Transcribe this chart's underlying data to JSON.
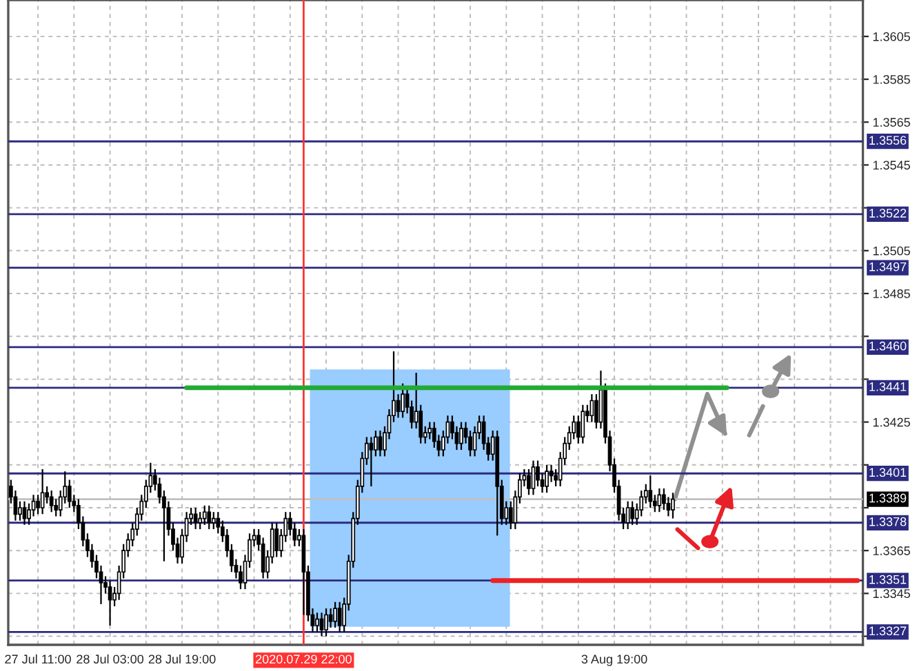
{
  "chart_data": {
    "type": "candlestick",
    "categories": [
      null,
      null,
      null,
      null,
      null,
      null,
      "27 Jul 11:00",
      null,
      null,
      null,
      null,
      null,
      null,
      null,
      null,
      null,
      null,
      null,
      null,
      null,
      null,
      null,
      "28 Jul 03:00",
      null,
      null,
      null,
      null,
      null,
      null,
      null,
      null,
      null,
      null,
      null,
      null,
      null,
      null,
      null,
      "28 Jul 19:00",
      null,
      null,
      null,
      null,
      null,
      null,
      null,
      null,
      null,
      null,
      null,
      null,
      null,
      null,
      null,
      null,
      null,
      null,
      null,
      null,
      null,
      null,
      null,
      null,
      null,
      null,
      "2020.07.29 22:00",
      null,
      null,
      null,
      null,
      null,
      null,
      null,
      null,
      null,
      null,
      null,
      null,
      null,
      null,
      null,
      null,
      null,
      null,
      null,
      null,
      null,
      null,
      null,
      null,
      null,
      null,
      null,
      null,
      null,
      null,
      null,
      null,
      null,
      null,
      null,
      null,
      null,
      null,
      null,
      null,
      null,
      null,
      null,
      null,
      null,
      null,
      null,
      null,
      null,
      null,
      null,
      null,
      null,
      null,
      null,
      null,
      null,
      null,
      null,
      null,
      null,
      null,
      null,
      null,
      null,
      null,
      null,
      null,
      "3 Aug 19:00",
      null,
      null,
      null,
      null,
      null,
      null,
      null,
      null,
      null,
      null,
      null,
      null,
      null,
      null,
      null,
      null,
      null,
      null,
      null,
      null,
      null,
      null,
      null,
      null,
      null,
      null,
      null,
      null,
      null,
      null,
      null,
      null,
      null,
      null,
      null,
      null,
      null,
      null,
      null,
      null,
      null,
      null,
      null,
      null,
      null,
      null,
      null,
      null,
      null,
      null,
      null,
      null,
      null,
      null,
      null
    ],
    "ohlc": [
      [
        1.3395,
        1.3398,
        1.3387,
        1.339
      ],
      [
        1.339,
        1.3393,
        1.3379,
        1.3382
      ],
      [
        1.3382,
        1.3388,
        1.3379,
        1.3385
      ],
      [
        1.3385,
        1.3388,
        1.3377,
        1.338
      ],
      [
        1.338,
        1.3387,
        1.3377,
        1.3384
      ],
      [
        1.3384,
        1.3391,
        1.3381,
        1.3388
      ],
      [
        1.3388,
        1.3391,
        1.3382,
        1.3385
      ],
      [
        1.3385,
        1.3403,
        1.3382,
        1.3392
      ],
      [
        1.3392,
        1.3395,
        1.3387,
        1.339
      ],
      [
        1.339,
        1.3393,
        1.3383,
        1.3386
      ],
      [
        1.3386,
        1.3389,
        1.3381,
        1.3384
      ],
      [
        1.3384,
        1.3393,
        1.3381,
        1.339
      ],
      [
        1.339,
        1.3402,
        1.3387,
        1.3395
      ],
      [
        1.3395,
        1.3398,
        1.3385,
        1.3388
      ],
      [
        1.3388,
        1.3391,
        1.3383,
        1.3386
      ],
      [
        1.3386,
        1.3389,
        1.3375,
        1.3378
      ],
      [
        1.3378,
        1.3381,
        1.3367,
        1.337
      ],
      [
        1.337,
        1.3373,
        1.3362,
        1.3365
      ],
      [
        1.3365,
        1.3368,
        1.3357,
        1.336
      ],
      [
        1.336,
        1.3363,
        1.3352,
        1.3355
      ],
      [
        1.3355,
        1.3358,
        1.334,
        1.335
      ],
      [
        1.335,
        1.3353,
        1.3345,
        1.3348
      ],
      [
        1.3348,
        1.3351,
        1.333,
        1.3342
      ],
      [
        1.3342,
        1.3348,
        1.3339,
        1.3345
      ],
      [
        1.3345,
        1.3358,
        1.3342,
        1.3355
      ],
      [
        1.3355,
        1.3368,
        1.3352,
        1.3365
      ],
      [
        1.3365,
        1.3373,
        1.3362,
        1.337
      ],
      [
        1.337,
        1.3378,
        1.3367,
        1.3375
      ],
      [
        1.3375,
        1.3385,
        1.3372,
        1.3382
      ],
      [
        1.3382,
        1.3391,
        1.3379,
        1.3388
      ],
      [
        1.3388,
        1.3398,
        1.3385,
        1.3395
      ],
      [
        1.3395,
        1.3406,
        1.3392,
        1.34
      ],
      [
        1.34,
        1.3403,
        1.3393,
        1.3396
      ],
      [
        1.3396,
        1.3399,
        1.3387,
        1.339
      ],
      [
        1.339,
        1.3393,
        1.336,
        1.3385
      ],
      [
        1.3385,
        1.3388,
        1.3372,
        1.3375
      ],
      [
        1.3375,
        1.3378,
        1.3365,
        1.3368
      ],
      [
        1.3368,
        1.3371,
        1.3359,
        1.3362
      ],
      [
        1.3362,
        1.3375,
        1.3359,
        1.3372
      ],
      [
        1.3372,
        1.3383,
        1.3369,
        1.338
      ],
      [
        1.338,
        1.3385,
        1.3377,
        1.3382
      ],
      [
        1.3382,
        1.3385,
        1.3375,
        1.3378
      ],
      [
        1.3378,
        1.3383,
        1.3375,
        1.338
      ],
      [
        1.338,
        1.3386,
        1.3377,
        1.3383
      ],
      [
        1.3383,
        1.3386,
        1.3375,
        1.3378
      ],
      [
        1.3378,
        1.3383,
        1.3375,
        1.338
      ],
      [
        1.338,
        1.3383,
        1.3373,
        1.3376
      ],
      [
        1.3376,
        1.3379,
        1.3369,
        1.3372
      ],
      [
        1.3372,
        1.3375,
        1.3362,
        1.3365
      ],
      [
        1.3365,
        1.3368,
        1.3355,
        1.3358
      ],
      [
        1.3358,
        1.3361,
        1.3352,
        1.3355
      ],
      [
        1.3355,
        1.3358,
        1.3347,
        1.335
      ],
      [
        1.335,
        1.3363,
        1.3347,
        1.336
      ],
      [
        1.336,
        1.3373,
        1.3357,
        1.337
      ],
      [
        1.337,
        1.3375,
        1.3367,
        1.3372
      ],
      [
        1.3372,
        1.3375,
        1.3365,
        1.3368
      ],
      [
        1.3368,
        1.3371,
        1.3352,
        1.3355
      ],
      [
        1.3355,
        1.3365,
        1.3352,
        1.3362
      ],
      [
        1.3362,
        1.3378,
        1.3359,
        1.3375
      ],
      [
        1.3375,
        1.3378,
        1.3362,
        1.3365
      ],
      [
        1.3365,
        1.3375,
        1.3362,
        1.3372
      ],
      [
        1.3372,
        1.3383,
        1.3369,
        1.338
      ],
      [
        1.338,
        1.3383,
        1.3372,
        1.3375
      ],
      [
        1.3375,
        1.3378,
        1.3367,
        1.337
      ],
      [
        1.337,
        1.3375,
        1.3367,
        1.3372
      ],
      [
        1.3372,
        1.3375,
        1.3335,
        1.3355
      ],
      [
        1.3355,
        1.3358,
        1.3332,
        1.3335
      ],
      [
        1.3335,
        1.3338,
        1.3327,
        1.333
      ],
      [
        1.333,
        1.3336,
        1.3327,
        1.3333
      ],
      [
        1.3333,
        1.3336,
        1.3325,
        1.3328
      ],
      [
        1.3328,
        1.3338,
        1.3325,
        1.3335
      ],
      [
        1.3335,
        1.3338,
        1.3329,
        1.3332
      ],
      [
        1.3332,
        1.3341,
        1.3329,
        1.3338
      ],
      [
        1.3338,
        1.3341,
        1.3327,
        1.333
      ],
      [
        1.333,
        1.3343,
        1.3327,
        1.334
      ],
      [
        1.334,
        1.3363,
        1.3337,
        1.336
      ],
      [
        1.336,
        1.3383,
        1.3357,
        1.338
      ],
      [
        1.338,
        1.3398,
        1.3377,
        1.3395
      ],
      [
        1.3395,
        1.3411,
        1.3392,
        1.3408
      ],
      [
        1.3408,
        1.3418,
        1.3405,
        1.3415
      ],
      [
        1.3415,
        1.3418,
        1.3395,
        1.3412
      ],
      [
        1.3412,
        1.3421,
        1.3409,
        1.3418
      ],
      [
        1.3418,
        1.3421,
        1.3409,
        1.3412
      ],
      [
        1.3412,
        1.3423,
        1.3409,
        1.342
      ],
      [
        1.342,
        1.3431,
        1.3417,
        1.3428
      ],
      [
        1.3428,
        1.3458,
        1.3425,
        1.3435
      ],
      [
        1.3435,
        1.3438,
        1.3427,
        1.343
      ],
      [
        1.343,
        1.3443,
        1.3427,
        1.3438
      ],
      [
        1.3438,
        1.3441,
        1.3429,
        1.3432
      ],
      [
        1.3432,
        1.3435,
        1.3422,
        1.3425
      ],
      [
        1.3425,
        1.3448,
        1.3422,
        1.343
      ],
      [
        1.343,
        1.3433,
        1.3415,
        1.3418
      ],
      [
        1.3418,
        1.3423,
        1.3415,
        1.342
      ],
      [
        1.342,
        1.3425,
        1.3417,
        1.3422
      ],
      [
        1.3422,
        1.3425,
        1.3413,
        1.3416
      ],
      [
        1.3416,
        1.3419,
        1.3409,
        1.3412
      ],
      [
        1.3412,
        1.3421,
        1.3409,
        1.3418
      ],
      [
        1.3418,
        1.3428,
        1.3415,
        1.3425
      ],
      [
        1.3425,
        1.3428,
        1.3417,
        1.342
      ],
      [
        1.342,
        1.3423,
        1.3412,
        1.3415
      ],
      [
        1.3415,
        1.3425,
        1.3412,
        1.3422
      ],
      [
        1.3422,
        1.3425,
        1.3415,
        1.3418
      ],
      [
        1.3418,
        1.3421,
        1.3409,
        1.3412
      ],
      [
        1.3412,
        1.3423,
        1.3409,
        1.342
      ],
      [
        1.342,
        1.3428,
        1.3417,
        1.3425
      ],
      [
        1.3425,
        1.3428,
        1.3412,
        1.3415
      ],
      [
        1.3415,
        1.3418,
        1.3407,
        1.341
      ],
      [
        1.341,
        1.3421,
        1.3407,
        1.3418
      ],
      [
        1.3418,
        1.3421,
        1.3372,
        1.3395
      ],
      [
        1.3395,
        1.3398,
        1.3377,
        1.338
      ],
      [
        1.338,
        1.3388,
        1.3377,
        1.3385
      ],
      [
        1.3385,
        1.3388,
        1.3375,
        1.3378
      ],
      [
        1.3378,
        1.3393,
        1.3375,
        1.339
      ],
      [
        1.339,
        1.3401,
        1.3387,
        1.3398
      ],
      [
        1.3398,
        1.3403,
        1.3395,
        1.34
      ],
      [
        1.34,
        1.3403,
        1.3391,
        1.3394
      ],
      [
        1.3394,
        1.3407,
        1.3391,
        1.3404
      ],
      [
        1.3404,
        1.3407,
        1.3395,
        1.3398
      ],
      [
        1.3398,
        1.3401,
        1.3392,
        1.3395
      ],
      [
        1.3395,
        1.3405,
        1.3392,
        1.3402
      ],
      [
        1.3402,
        1.3405,
        1.3397,
        1.34
      ],
      [
        1.34,
        1.3403,
        1.3395,
        1.3398
      ],
      [
        1.3398,
        1.3411,
        1.3395,
        1.3408
      ],
      [
        1.3408,
        1.3418,
        1.3405,
        1.3415
      ],
      [
        1.3415,
        1.3423,
        1.3412,
        1.342
      ],
      [
        1.342,
        1.3428,
        1.3417,
        1.3425
      ],
      [
        1.3425,
        1.3428,
        1.3415,
        1.3418
      ],
      [
        1.3418,
        1.3433,
        1.3415,
        1.343
      ],
      [
        1.343,
        1.3433,
        1.3425,
        1.3428
      ],
      [
        1.3428,
        1.3438,
        1.3425,
        1.3435
      ],
      [
        1.3435,
        1.3438,
        1.3422,
        1.3425
      ],
      [
        1.3425,
        1.3449,
        1.3422,
        1.344
      ],
      [
        1.344,
        1.3443,
        1.3415,
        1.3418
      ],
      [
        1.3418,
        1.3421,
        1.3402,
        1.3405
      ],
      [
        1.3405,
        1.3408,
        1.3392,
        1.3395
      ],
      [
        1.3395,
        1.3398,
        1.3379,
        1.3382
      ],
      [
        1.3382,
        1.3385,
        1.3375,
        1.3378
      ],
      [
        1.3378,
        1.3388,
        1.3375,
        1.3385
      ],
      [
        1.3385,
        1.3388,
        1.3377,
        1.338
      ],
      [
        1.338,
        1.3387,
        1.3377,
        1.3384
      ],
      [
        1.3384,
        1.3393,
        1.3381,
        1.339
      ],
      [
        1.339,
        1.3396,
        1.3387,
        1.3393
      ],
      [
        1.3393,
        1.34,
        1.3385,
        1.3388
      ],
      [
        1.3388,
        1.3391,
        1.3383,
        1.3386
      ],
      [
        1.3386,
        1.3394,
        1.3383,
        1.3391
      ],
      [
        1.3391,
        1.3394,
        1.3384,
        1.3387
      ],
      [
        1.3387,
        1.339,
        1.3381,
        1.3384
      ],
      [
        1.3384,
        1.3392,
        1.338,
        1.3389
      ],
      null,
      null,
      null,
      null,
      null,
      null,
      null,
      null,
      null,
      null,
      null,
      null,
      null,
      null,
      null,
      null,
      null,
      null,
      null,
      null,
      null,
      null,
      null,
      null,
      null,
      null,
      null,
      null,
      null,
      null,
      null,
      null,
      null,
      null,
      null,
      null,
      null,
      null,
      null,
      null,
      null,
      null
    ],
    "series": [
      {
        "type": "line",
        "color": "#22aa33",
        "values": [
          null,
          null,
          null,
          null,
          null,
          null,
          null,
          null,
          null,
          null,
          null,
          null,
          null,
          null,
          null,
          null,
          null,
          null,
          null,
          null,
          null,
          null,
          null,
          null,
          null,
          null,
          null,
          null,
          null,
          null,
          null,
          null,
          null,
          null,
          null,
          null,
          null,
          null,
          null,
          1.3441,
          1.3441,
          1.3441,
          1.3441,
          1.3441,
          1.3441,
          1.3441,
          1.3441,
          1.3441,
          1.3441,
          1.3441,
          1.3441,
          1.3441,
          1.3441,
          1.3441,
          1.3441,
          1.3441,
          1.3441,
          1.3441,
          1.3441,
          1.3441,
          1.3441,
          1.3441,
          1.3441,
          1.3441,
          1.3441,
          1.3441,
          1.3441,
          1.3441,
          1.3441,
          1.3441,
          1.3441,
          1.3441,
          1.3441,
          1.3441,
          1.3441,
          1.3441,
          1.3441,
          1.3441,
          1.3441,
          1.3441,
          1.3441,
          1.3441,
          1.3441,
          1.3441,
          1.3441,
          1.3441,
          1.3441,
          1.3441,
          1.3441,
          1.3441,
          1.3441,
          1.3441,
          1.3441,
          1.3441,
          1.3441,
          1.3441,
          1.3441,
          1.3441,
          1.3441,
          1.3441,
          1.3441,
          1.3441,
          1.3441,
          1.3441,
          1.3441,
          1.3441,
          1.3441,
          1.3441,
          1.3441,
          1.3441,
          1.3441,
          1.3441,
          1.3441,
          1.3441,
          1.3441,
          1.3441,
          1.3441,
          1.3441,
          1.3441,
          1.3441,
          1.3441,
          1.3441,
          1.3441,
          1.3441,
          1.3441,
          1.3441,
          1.3441,
          1.3441,
          1.3441,
          1.3441,
          1.3441,
          1.3441,
          1.3441,
          1.3441,
          1.3441,
          1.3441,
          1.3441,
          1.3441,
          1.3441,
          1.3441,
          1.3441,
          1.3441,
          1.3441,
          1.3441,
          1.3441,
          1.3441,
          1.3441,
          1.3441,
          1.3441,
          1.3441,
          1.3441,
          1.3441,
          1.3441,
          1.3441,
          1.3441,
          1.3441,
          1.3441,
          1.3441,
          1.3441,
          1.3441,
          null,
          null,
          null,
          null,
          null,
          null,
          null,
          null,
          null,
          null,
          null,
          null,
          null,
          null,
          null,
          null,
          null,
          null,
          null,
          null,
          null,
          null,
          null,
          null,
          null,
          null,
          null,
          null,
          null,
          null
        ]
      },
      {
        "type": "line",
        "color": "#ee2222",
        "values": [
          null,
          null,
          null,
          null,
          null,
          null,
          null,
          null,
          null,
          null,
          null,
          null,
          null,
          null,
          null,
          null,
          null,
          null,
          null,
          null,
          null,
          null,
          null,
          null,
          null,
          null,
          null,
          null,
          null,
          null,
          null,
          null,
          null,
          null,
          null,
          null,
          null,
          null,
          null,
          null,
          null,
          null,
          null,
          null,
          null,
          null,
          null,
          null,
          null,
          null,
          null,
          null,
          null,
          null,
          null,
          null,
          null,
          null,
          null,
          null,
          null,
          null,
          null,
          null,
          null,
          null,
          null,
          null,
          null,
          null,
          null,
          null,
          null,
          null,
          null,
          null,
          null,
          null,
          null,
          null,
          null,
          null,
          null,
          null,
          null,
          null,
          null,
          null,
          null,
          null,
          null,
          null,
          null,
          null,
          null,
          null,
          null,
          null,
          null,
          null,
          null,
          null,
          null,
          null,
          null,
          null,
          null,
          1.3351,
          1.3351,
          1.3351,
          1.3351,
          1.3351,
          1.3351,
          1.3351,
          1.3351,
          1.3351,
          1.3351,
          1.3351,
          1.3351,
          1.3351,
          1.3351,
          1.3351,
          1.3351,
          1.3351,
          1.3351,
          1.3351,
          1.3351,
          1.3351,
          1.3351,
          1.3351,
          1.3351,
          1.3351,
          1.3351,
          1.3351,
          1.3351,
          1.3351,
          1.3351,
          1.3351,
          1.3351,
          1.3351,
          1.3351,
          1.3351,
          1.3351,
          1.3351,
          1.3351,
          1.3351,
          1.3351,
          1.3351,
          1.3351,
          1.3351,
          1.3351,
          1.3351,
          1.3351,
          1.3351,
          1.3351,
          1.3351,
          1.3351,
          1.3351,
          1.3351,
          1.3351,
          1.3351,
          1.3351,
          1.3351,
          1.3351,
          1.3351,
          1.3351,
          1.3351,
          1.3351,
          1.3351,
          1.3351,
          1.3351,
          1.3351,
          1.3351,
          1.3351,
          1.3351,
          1.3351,
          1.3351,
          1.3351,
          1.3351,
          1.3351,
          1.3351,
          1.3351,
          1.3351,
          1.3351,
          1.3351,
          1.3351,
          1.3351,
          1.3351,
          1.3351,
          null
        ]
      }
    ],
    "ylim": [
      1.3321,
      1.3622
    ],
    "yticks": [
      {
        "value": 1.3325,
        "label": null
      },
      1.3345,
      1.3365,
      {
        "value": 1.3385,
        "label": null
      },
      {
        "value": 1.3405,
        "label": null
      },
      1.3425,
      {
        "value": 1.3445,
        "label": null
      },
      {
        "value": 1.3465,
        "label": null
      },
      1.3485,
      1.3505,
      {
        "value": 1.3525,
        "label": null
      },
      1.3545,
      1.3565,
      1.3585,
      1.3605
    ],
    "ref_lines": [
      {
        "axis": "y",
        "value": 1.3556,
        "label": "1.3556",
        "color": "#2b2b80"
      },
      {
        "axis": "y",
        "value": 1.3522,
        "label": "1.3522",
        "color": "#2b2b80"
      },
      {
        "axis": "y",
        "value": 1.3497,
        "label": "1.3497",
        "color": "#2b2b80"
      },
      {
        "axis": "y",
        "value": 1.346,
        "label": "1.3460",
        "color": "#2b2b80"
      },
      {
        "axis": "y",
        "value": 1.3441,
        "label": "1.3441",
        "color": "#2b2b80"
      },
      {
        "axis": "y",
        "value": 1.3401,
        "label": "1.3401",
        "color": "#2b2b80"
      },
      {
        "axis": "y",
        "value": 1.3389,
        "label": "1.3389",
        "color": "#c0c0c0"
      },
      {
        "axis": "y",
        "value": 1.3378,
        "label": "1.3378",
        "color": "#2b2b80"
      },
      {
        "axis": "y",
        "value": 1.3351,
        "label": "1.3351",
        "color": "#2b2b80"
      },
      {
        "axis": "y",
        "value": 1.3327,
        "label": "1.3327",
        "color": "#2b2b80"
      },
      {
        "axis": "x",
        "value": "2020.07.29 22:00",
        "color": "#ff3333"
      }
    ],
    "grid": true
  }
}
